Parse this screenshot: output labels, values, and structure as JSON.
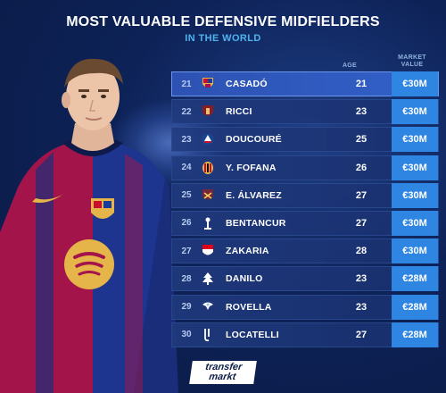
{
  "header": {
    "title": "MOST VALUABLE DEFENSIVE MIDFIELDERS",
    "subtitle": "IN THE WORLD"
  },
  "columns": {
    "age": "AGE",
    "market_value_line1": "MARKET",
    "market_value_line2": "VALUE"
  },
  "rows": [
    {
      "rank": "21",
      "club_icon": "barcelona-crest-icon",
      "name": "CASADÓ",
      "age": "21",
      "value": "€30M"
    },
    {
      "rank": "22",
      "club_icon": "torino-crest-icon",
      "name": "RICCI",
      "age": "23",
      "value": "€30M"
    },
    {
      "rank": "23",
      "club_icon": "crystal-palace-crest-icon",
      "name": "DOUCOURÉ",
      "age": "25",
      "value": "€30M"
    },
    {
      "rank": "24",
      "club_icon": "ac-milan-crest-icon",
      "name": "Y. FOFANA",
      "age": "26",
      "value": "€30M"
    },
    {
      "rank": "25",
      "club_icon": "west-ham-crest-icon",
      "name": "E. ÁLVAREZ",
      "age": "27",
      "value": "€30M"
    },
    {
      "rank": "26",
      "club_icon": "tottenham-crest-icon",
      "name": "BENTANCUR",
      "age": "27",
      "value": "€30M"
    },
    {
      "rank": "27",
      "club_icon": "monaco-crest-icon",
      "name": "ZAKARIA",
      "age": "28",
      "value": "€30M"
    },
    {
      "rank": "28",
      "club_icon": "nottingham-forest-crest-icon",
      "name": "DANILO",
      "age": "23",
      "value": "€28M"
    },
    {
      "rank": "29",
      "club_icon": "lazio-crest-icon",
      "name": "ROVELLA",
      "age": "23",
      "value": "€28M"
    },
    {
      "rank": "30",
      "club_icon": "juventus-crest-icon",
      "name": "LOCATELLI",
      "age": "27",
      "value": "€28M"
    }
  ],
  "footer": {
    "logo_line1": "transfer",
    "logo_line2": "markt"
  },
  "colors": {
    "background": "#0d2257",
    "accent": "#4fb3ee",
    "value_cell": "#2f86e2"
  }
}
